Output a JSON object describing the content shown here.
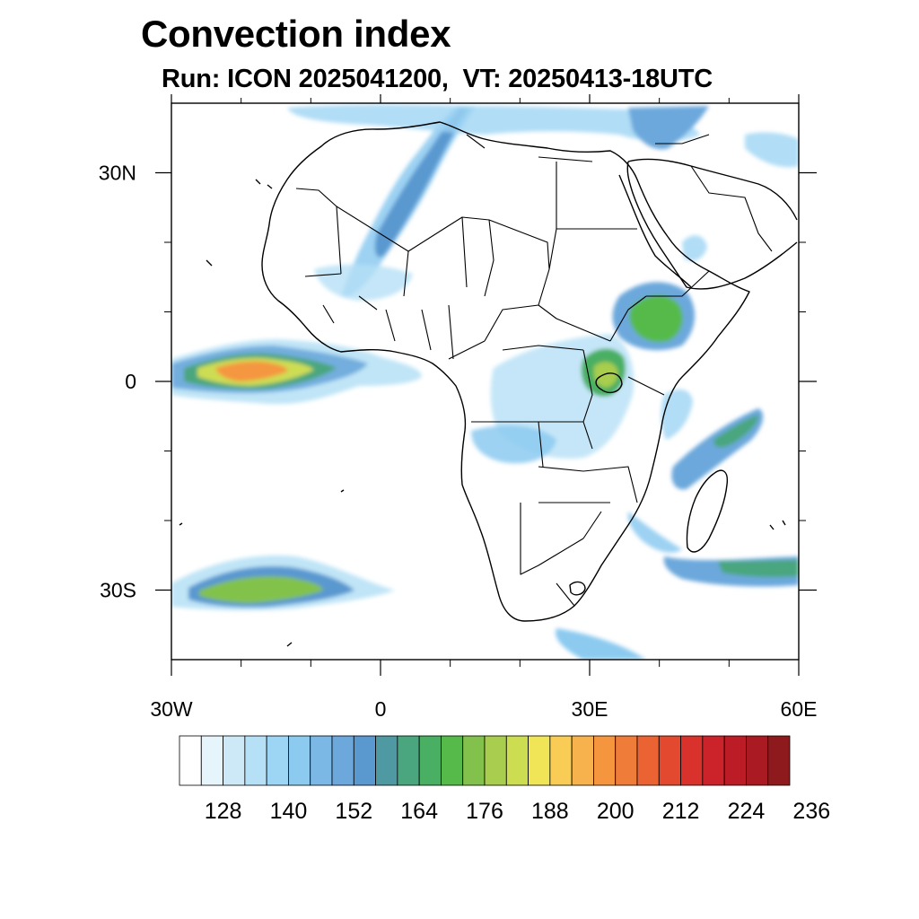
{
  "header": {
    "title": "Convection index",
    "subtitle": "Run: ICON 2025041200,  VT: 20250413-18UTC"
  },
  "map": {
    "lon_range": [
      -30,
      60
    ],
    "lat_range": [
      -40,
      40
    ],
    "x_ticks": [
      {
        "lon": -30,
        "label": "30W"
      },
      {
        "lon": 0,
        "label": "0"
      },
      {
        "lon": 30,
        "label": "30E"
      },
      {
        "lon": 60,
        "label": "60E"
      }
    ],
    "y_ticks": [
      {
        "lat": 30,
        "label": "30N"
      },
      {
        "lat": 0,
        "label": "0"
      },
      {
        "lat": -30,
        "label": "30S"
      }
    ],
    "minor_lon_ticks": [
      -20,
      -10,
      10,
      20,
      40,
      50
    ],
    "minor_lat_ticks": [
      20,
      10,
      -10,
      -20
    ]
  },
  "colorbar": {
    "labels": [
      "128",
      "140",
      "152",
      "164",
      "176",
      "188",
      "200",
      "212",
      "224",
      "236"
    ],
    "colors": [
      "#ffffff",
      "#e6f4fc",
      "#cde9f8",
      "#b5e0f6",
      "#9dd5f4",
      "#8ccaf0",
      "#7cb8e6",
      "#6ca8dc",
      "#5a98d0",
      "#4f9aa2",
      "#4aa67e",
      "#49af62",
      "#56ba4b",
      "#82c24c",
      "#a9cd4e",
      "#cddd52",
      "#efe557",
      "#f8cc55",
      "#f7b14d",
      "#f5963f",
      "#f07c39",
      "#eb6332",
      "#e2492e",
      "#d9312c",
      "#cc2229",
      "#bb1c26",
      "#a91a22",
      "#8e1a1d"
    ]
  }
}
